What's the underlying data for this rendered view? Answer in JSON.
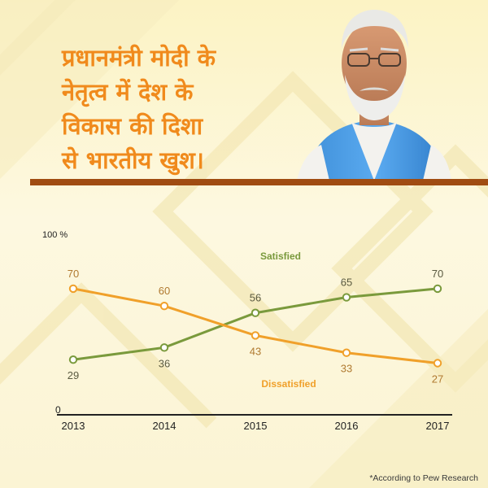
{
  "headline": {
    "lines": [
      "प्रधानमंत्री मोदी के",
      "नेतृत्व में देश के",
      "विकास की दिशा",
      "से भारतीय खुश।"
    ]
  },
  "colors": {
    "background": "#fbf6d8",
    "headline": "#f08a1c",
    "divider": "#a04c12",
    "satisfied": "#7a9a3c",
    "dissatisfied": "#f0a02a"
  },
  "footnote": "*According to Pew Research",
  "chart_data": {
    "type": "line",
    "x": [
      "2013",
      "2014",
      "2015",
      "2016",
      "2017"
    ],
    "ylim": [
      0,
      100
    ],
    "ytick_labels": [
      "0",
      "100 %"
    ],
    "grid": false,
    "series": [
      {
        "name": "Satisfied",
        "values": [
          29,
          36,
          56,
          65,
          70
        ],
        "color": "#7a9a3c"
      },
      {
        "name": "Dissatisfied",
        "values": [
          70,
          60,
          43,
          33,
          27
        ],
        "color": "#f0a02a"
      }
    ]
  }
}
